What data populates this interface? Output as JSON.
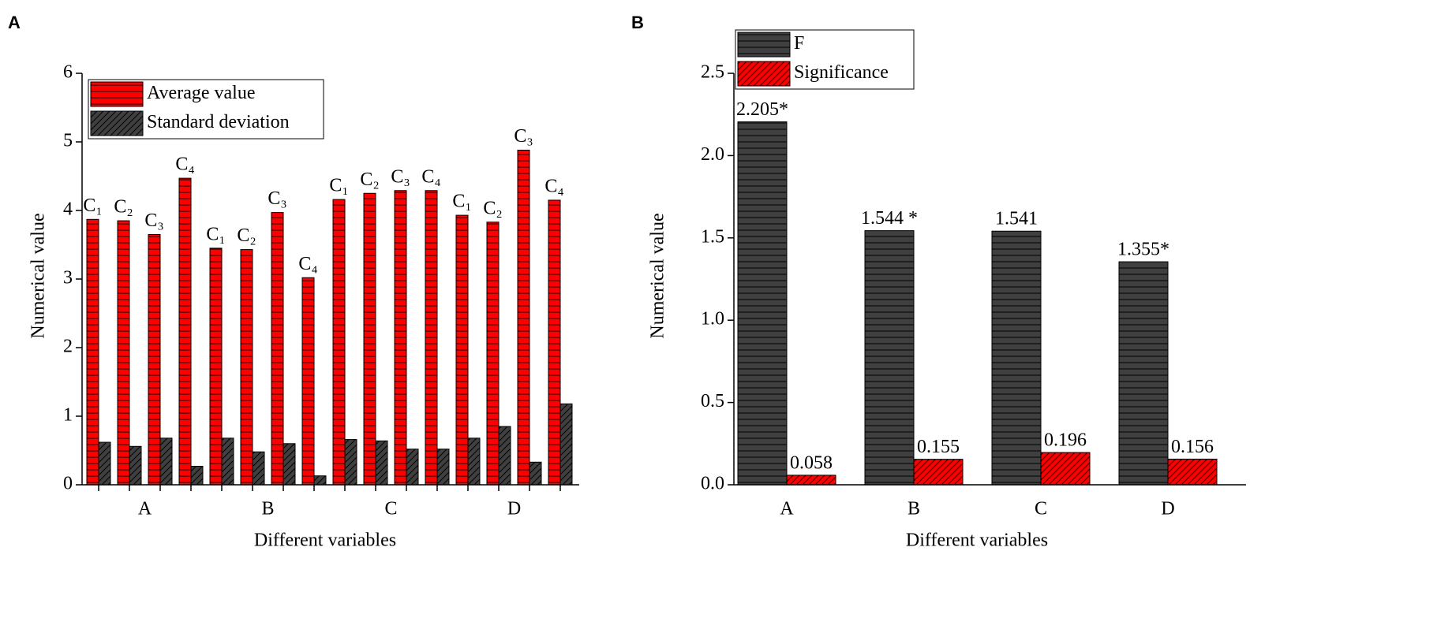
{
  "chart_data": [
    {
      "type": "bar",
      "panel": "A",
      "x_label": "Different variables",
      "y_label": "Numerical value",
      "groups": [
        "A",
        "B",
        "C",
        "D"
      ],
      "categories": [
        "C₁",
        "C₂",
        "C₃",
        "C₄",
        "C₁",
        "C₂",
        "C₃",
        "C₄",
        "C₁",
        "C₂",
        "C₃",
        "C₄",
        "C₁",
        "C₂",
        "C₃",
        "C₄"
      ],
      "series": [
        {
          "name": "Average value",
          "color": "#ff0000",
          "hatch": "horizontal",
          "values": [
            3.87,
            3.85,
            3.65,
            4.47,
            3.45,
            3.43,
            3.97,
            3.02,
            4.16,
            4.25,
            4.29,
            4.29,
            3.93,
            3.83,
            4.88,
            4.15
          ]
        },
        {
          "name": "Standard deviation",
          "color": "#404040",
          "hatch": "diagonal",
          "values": [
            0.62,
            0.56,
            0.68,
            0.27,
            0.68,
            0.48,
            0.6,
            0.13,
            0.66,
            0.64,
            0.52,
            0.52,
            0.68,
            0.85,
            0.33,
            1.18
          ]
        }
      ],
      "ylim": [
        0,
        6
      ],
      "yticks": [
        0,
        1,
        2,
        3,
        4,
        5,
        6
      ]
    },
    {
      "type": "bar",
      "panel": "B",
      "x_label": "Different variables",
      "y_label": "Numerical value",
      "categories": [
        "A",
        "B",
        "C",
        "D"
      ],
      "series": [
        {
          "name": "F",
          "color": "#404040",
          "hatch": "horizontal",
          "values": [
            2.205,
            1.544,
            1.541,
            1.355
          ],
          "value_labels": [
            "2.205*",
            "1.544 *",
            "1.541",
            "1.355*"
          ]
        },
        {
          "name": "Significance",
          "color": "#ff0000",
          "hatch": "diagonal",
          "values": [
            0.058,
            0.155,
            0.196,
            0.156
          ]
        }
      ],
      "ylim": [
        0,
        2.5
      ],
      "yticks": [
        {
          "value": 0,
          "label": "0.0"
        },
        0.5,
        {
          "value": 1,
          "label": "1.0"
        },
        1.5,
        {
          "value": 2,
          "label": "2.0"
        },
        2.5
      ]
    }
  ]
}
